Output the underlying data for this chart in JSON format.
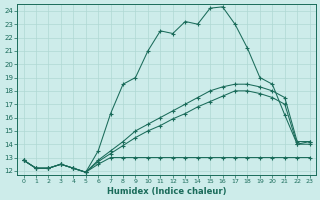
{
  "xlabel": "Humidex (Indice chaleur)",
  "bg_color": "#cdecea",
  "line_color": "#1a6b5a",
  "grid_color": "#b0d8d4",
  "xlim_min": -0.5,
  "xlim_max": 23.5,
  "ylim_min": 11.7,
  "ylim_max": 24.5,
  "xticks": [
    0,
    1,
    2,
    3,
    4,
    5,
    6,
    7,
    8,
    9,
    10,
    11,
    12,
    13,
    14,
    15,
    16,
    17,
    18,
    19,
    20,
    21,
    22,
    23
  ],
  "yticks": [
    12,
    13,
    14,
    15,
    16,
    17,
    18,
    19,
    20,
    21,
    22,
    23,
    24
  ],
  "line1_y": [
    12.8,
    12.2,
    12.2,
    12.5,
    12.2,
    11.9,
    13.5,
    16.3,
    18.5,
    19.0,
    21.0,
    22.5,
    22.3,
    23.2,
    23.0,
    24.2,
    24.3,
    23.0,
    21.2,
    19.0,
    18.5,
    16.2,
    14.0,
    14.2
  ],
  "line2_y": [
    12.8,
    12.2,
    12.2,
    12.5,
    12.2,
    11.9,
    12.8,
    13.5,
    14.2,
    15.0,
    15.5,
    16.0,
    16.5,
    17.0,
    17.5,
    18.0,
    18.3,
    18.5,
    18.5,
    18.3,
    18.0,
    17.5,
    14.2,
    14.2
  ],
  "line3_y": [
    12.8,
    12.2,
    12.2,
    12.5,
    12.2,
    11.9,
    12.7,
    13.3,
    13.9,
    14.5,
    15.0,
    15.4,
    15.9,
    16.3,
    16.8,
    17.2,
    17.6,
    18.0,
    18.0,
    17.8,
    17.5,
    17.0,
    14.0,
    14.0
  ],
  "line4_y": [
    12.8,
    12.2,
    12.2,
    12.5,
    12.2,
    11.9,
    12.5,
    13.0,
    13.0,
    13.0,
    13.0,
    13.0,
    13.0,
    13.0,
    13.0,
    13.0,
    13.0,
    13.0,
    13.0,
    13.0,
    13.0,
    13.0,
    13.0,
    13.0
  ]
}
